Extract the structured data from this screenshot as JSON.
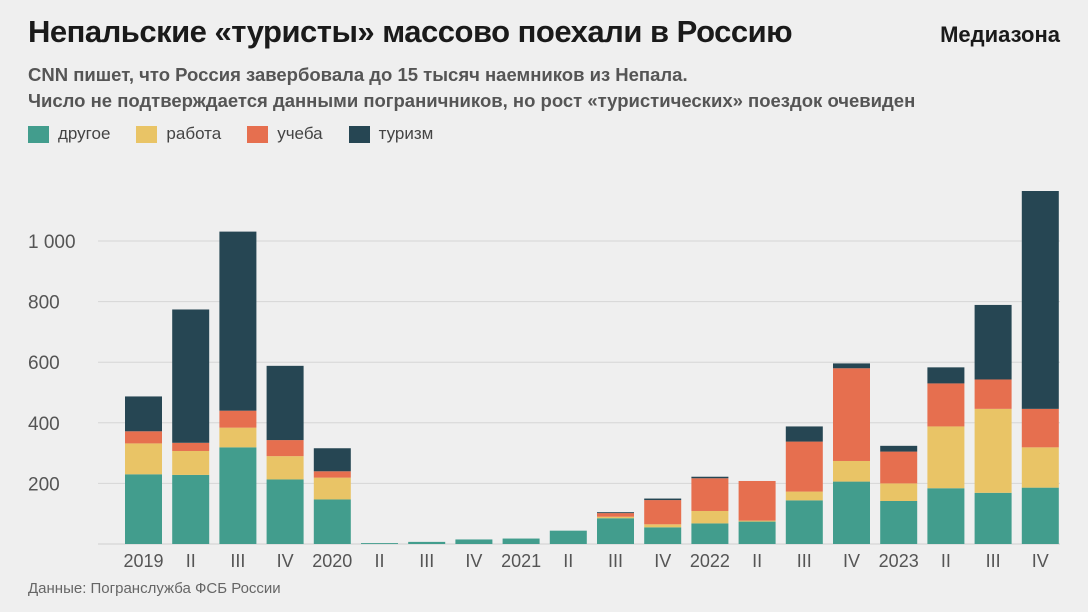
{
  "title": "Непальские «туристы» массово поехали в Россию",
  "logo": "Медиазона",
  "subtitle": [
    "CNN пишет, что Россия завербовала до 15 тысяч наемников из Непала.",
    "Число не подтверждается данными пограничников, но рост «туристических» поездок очевиден"
  ],
  "source": "Данные: Погранслужба ФСБ России",
  "chart_data": {
    "type": "bar",
    "stacked": true,
    "categories": [
      "2019",
      "II",
      "III",
      "IV",
      "2020",
      "II",
      "III",
      "IV",
      "2021",
      "II",
      "III",
      "IV",
      "2022",
      "II",
      "III",
      "IV",
      "2023",
      "II",
      "III",
      "IV"
    ],
    "series": [
      {
        "name": "другое",
        "color": "#429d8d",
        "values": [
          230,
          228,
          319,
          213,
          147,
          3,
          7,
          15,
          18,
          44,
          85,
          55,
          68,
          74,
          144,
          206,
          142,
          184,
          169,
          186
        ]
      },
      {
        "name": "работа",
        "color": "#e9c466",
        "values": [
          102,
          79,
          65,
          77,
          72,
          0,
          0,
          0,
          0,
          0,
          5,
          10,
          41,
          3,
          29,
          68,
          58,
          204,
          277,
          133
        ]
      },
      {
        "name": "учеба",
        "color": "#e66f4f",
        "values": [
          40,
          27,
          56,
          53,
          21,
          0,
          0,
          0,
          0,
          0,
          12,
          80,
          108,
          131,
          165,
          306,
          105,
          142,
          97,
          127
        ]
      },
      {
        "name": "туризм",
        "color": "#264653",
        "values": [
          115,
          440,
          591,
          245,
          76,
          0,
          0,
          0,
          0,
          0,
          3,
          5,
          5,
          0,
          50,
          16,
          19,
          53,
          246,
          719
        ]
      }
    ],
    "yticks": [
      200,
      400,
      600,
      800,
      1000
    ],
    "ytick_labels": [
      "200",
      "400",
      "600",
      "800",
      "1 000"
    ],
    "ylim": [
      0,
      1170
    ],
    "grid": true,
    "legend": "top-left"
  }
}
